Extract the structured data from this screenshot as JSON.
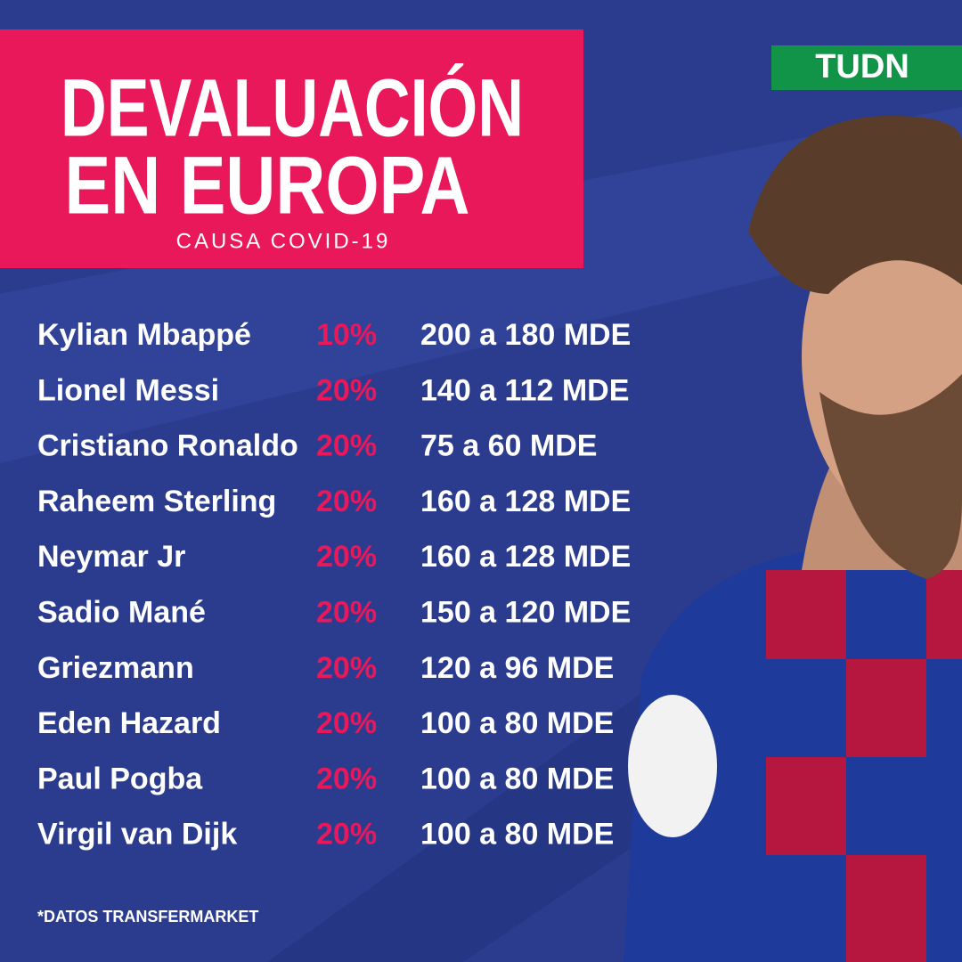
{
  "header": {
    "title_lines": [
      "DEVALUACIÓN",
      "EN EUROPA"
    ],
    "subtitle": "CAUSA COVID-19",
    "brand": "TUDN"
  },
  "table": {
    "rows": [
      [
        "Kylian Mbappé",
        "10%",
        "200 a 180 MDE"
      ],
      [
        "Lionel Messi",
        "20%",
        "140 a 112 MDE"
      ],
      [
        "Cristiano Ronaldo",
        "20%",
        "75 a 60 MDE"
      ],
      [
        "Raheem Sterling",
        "20%",
        "160 a 128 MDE"
      ],
      [
        "Neymar Jr",
        "20%",
        "160 a 128 MDE"
      ],
      [
        "Sadio Mané",
        "20%",
        "150 a 120 MDE"
      ],
      [
        "Griezmann",
        "20%",
        "120 a 96 MDE"
      ],
      [
        "Eden Hazard",
        "20%",
        "100 a 80 MDE"
      ],
      [
        "Paul Pogba",
        "20%",
        "100 a 80 MDE"
      ],
      [
        "Virgil van Dijk",
        "20%",
        "100 a 80 MDE"
      ]
    ]
  },
  "footnote": "*DATOS TRANSFERMARKET"
}
